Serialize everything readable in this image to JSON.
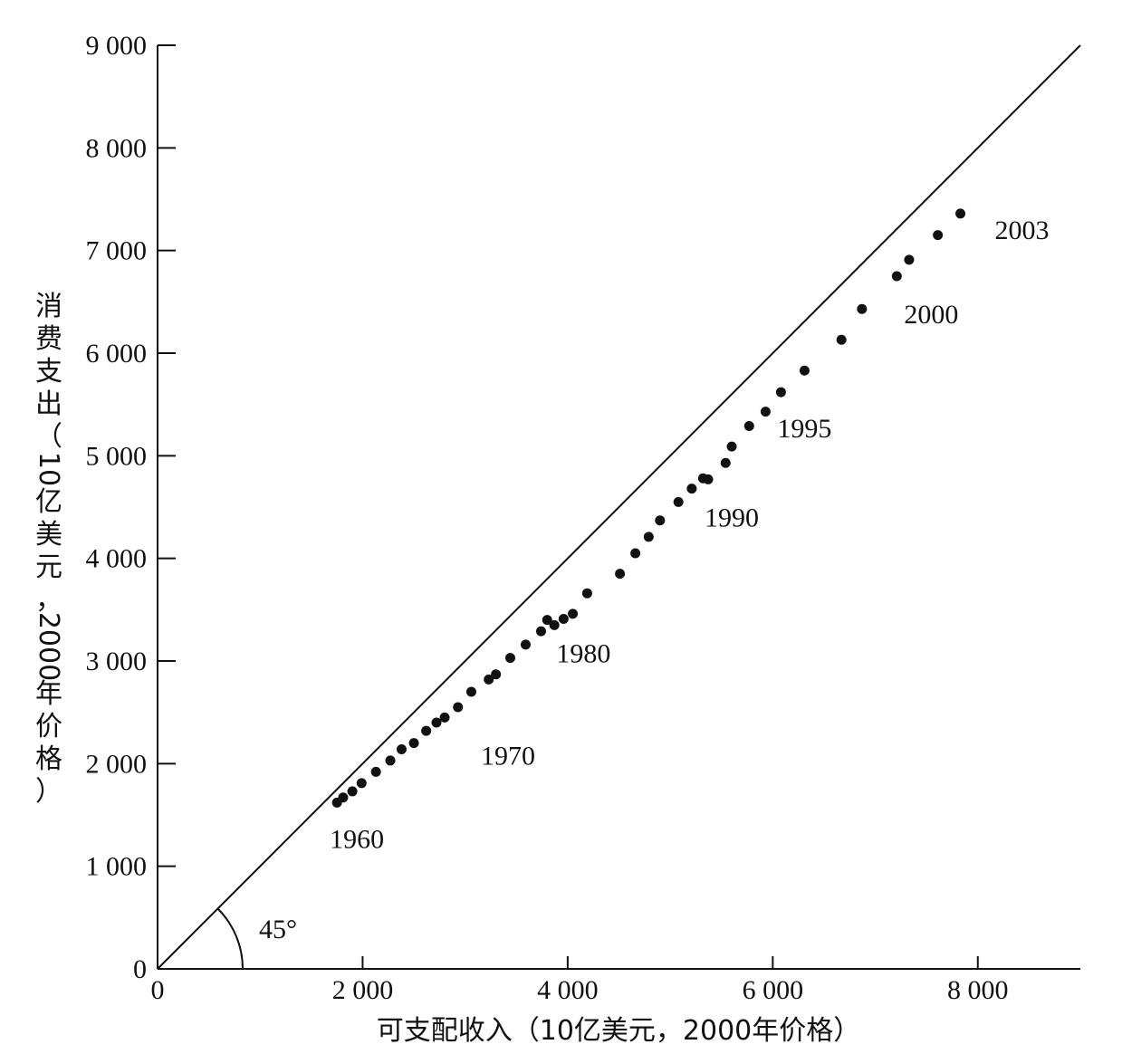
{
  "chart_data": {
    "type": "scatter",
    "title": "",
    "xlabel": "可支配收入（10亿美元，2000年价格）",
    "ylabel": "消费支出（10亿美元，2000年价格）",
    "xlim": [
      0,
      9000
    ],
    "ylim": [
      0,
      9000
    ],
    "xticks": [
      {
        "value": 0,
        "label": "0"
      },
      {
        "value": 2000,
        "label": "2 000"
      },
      {
        "value": 4000,
        "label": "4 000"
      },
      {
        "value": 6000,
        "label": "6 000"
      },
      {
        "value": 8000,
        "label": "8 000"
      }
    ],
    "yticks": [
      {
        "value": 0,
        "label": "0"
      },
      {
        "value": 1000,
        "label": "1 000"
      },
      {
        "value": 2000,
        "label": "2 000"
      },
      {
        "value": 3000,
        "label": "3 000"
      },
      {
        "value": 4000,
        "label": "4 000"
      },
      {
        "value": 5000,
        "label": "5 000"
      },
      {
        "value": 6000,
        "label": "6 000"
      },
      {
        "value": 7000,
        "label": "7 000"
      },
      {
        "value": 8000,
        "label": "8 000"
      },
      {
        "value": 9000,
        "label": "9 000"
      }
    ],
    "grid": false,
    "reference_line": {
      "from": [
        0,
        0
      ],
      "to": [
        9000,
        9000
      ],
      "angle_label": "45°"
    },
    "points": [
      {
        "x": 1750,
        "y": 1620
      },
      {
        "x": 1810,
        "y": 1670
      },
      {
        "x": 1900,
        "y": 1730
      },
      {
        "x": 1990,
        "y": 1810
      },
      {
        "x": 2130,
        "y": 1920
      },
      {
        "x": 2270,
        "y": 2030
      },
      {
        "x": 2380,
        "y": 2140
      },
      {
        "x": 2500,
        "y": 2200
      },
      {
        "x": 2620,
        "y": 2320
      },
      {
        "x": 2720,
        "y": 2400
      },
      {
        "x": 2800,
        "y": 2450
      },
      {
        "x": 2930,
        "y": 2550
      },
      {
        "x": 3060,
        "y": 2700
      },
      {
        "x": 3230,
        "y": 2820
      },
      {
        "x": 3300,
        "y": 2870
      },
      {
        "x": 3440,
        "y": 3030
      },
      {
        "x": 3590,
        "y": 3160
      },
      {
        "x": 3740,
        "y": 3290
      },
      {
        "x": 3800,
        "y": 3400
      },
      {
        "x": 3870,
        "y": 3350
      },
      {
        "x": 3960,
        "y": 3410
      },
      {
        "x": 4050,
        "y": 3460
      },
      {
        "x": 4190,
        "y": 3660
      },
      {
        "x": 4510,
        "y": 3850
      },
      {
        "x": 4660,
        "y": 4050
      },
      {
        "x": 4790,
        "y": 4210
      },
      {
        "x": 4900,
        "y": 4370
      },
      {
        "x": 5080,
        "y": 4550
      },
      {
        "x": 5210,
        "y": 4680
      },
      {
        "x": 5320,
        "y": 4780
      },
      {
        "x": 5370,
        "y": 4770
      },
      {
        "x": 5540,
        "y": 4930
      },
      {
        "x": 5600,
        "y": 5090
      },
      {
        "x": 5770,
        "y": 5290
      },
      {
        "x": 5930,
        "y": 5430
      },
      {
        "x": 6080,
        "y": 5620
      },
      {
        "x": 6310,
        "y": 5830
      },
      {
        "x": 6670,
        "y": 6130
      },
      {
        "x": 6870,
        "y": 6430
      },
      {
        "x": 7210,
        "y": 6750
      },
      {
        "x": 7330,
        "y": 6910
      },
      {
        "x": 7610,
        "y": 7150
      },
      {
        "x": 7830,
        "y": 7360
      }
    ],
    "annotations": [
      {
        "text": "1960",
        "x": 1750,
        "y": 1620
      },
      {
        "text": "1970",
        "x": 2800,
        "y": 2450
      },
      {
        "text": "1980",
        "x": 3960,
        "y": 3410
      },
      {
        "text": "1990",
        "x": 5370,
        "y": 4770
      },
      {
        "text": "1995",
        "x": 6080,
        "y": 5620
      },
      {
        "text": "2000",
        "x": 7210,
        "y": 6750
      },
      {
        "text": "2003",
        "x": 7830,
        "y": 7360
      }
    ]
  }
}
